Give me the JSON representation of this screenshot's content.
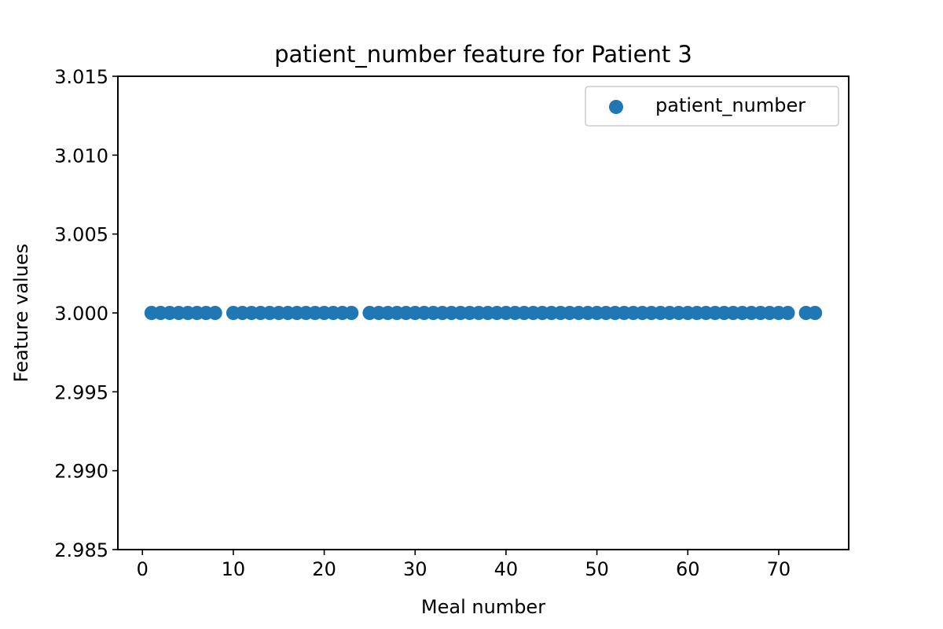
{
  "chart_data": {
    "type": "scatter",
    "title": "patient_number feature for Patient 3",
    "xlabel": "Meal number",
    "ylabel": "Feature values",
    "xlim": [
      -2.7,
      77.7
    ],
    "ylim": [
      2.985,
      3.015
    ],
    "xticks": [
      0,
      10,
      20,
      30,
      40,
      50,
      60,
      70
    ],
    "xtick_labels": [
      "0",
      "10",
      "20",
      "30",
      "40",
      "50",
      "60",
      "70"
    ],
    "yticks": [
      2.985,
      2.99,
      2.995,
      3.0,
      3.005,
      3.01,
      3.015
    ],
    "ytick_labels": [
      "2.985",
      "2.990",
      "2.995",
      "3.000",
      "3.005",
      "3.010",
      "3.015"
    ],
    "grid": false,
    "legend": {
      "placement": "upper-right"
    },
    "series": [
      {
        "name": "patient_number",
        "color": "#1f77b4",
        "x": [
          1,
          2,
          3,
          4,
          5,
          6,
          7,
          8,
          10,
          11,
          12,
          13,
          14,
          15,
          16,
          17,
          18,
          19,
          20,
          21,
          22,
          23,
          25,
          26,
          27,
          28,
          29,
          30,
          31,
          32,
          33,
          34,
          35,
          36,
          37,
          38,
          39,
          40,
          41,
          42,
          43,
          44,
          45,
          46,
          47,
          48,
          49,
          50,
          51,
          52,
          53,
          54,
          55,
          56,
          57,
          58,
          59,
          60,
          61,
          62,
          63,
          64,
          65,
          66,
          67,
          68,
          69,
          70,
          71,
          73,
          74
        ],
        "y": [
          3,
          3,
          3,
          3,
          3,
          3,
          3,
          3,
          3,
          3,
          3,
          3,
          3,
          3,
          3,
          3,
          3,
          3,
          3,
          3,
          3,
          3,
          3,
          3,
          3,
          3,
          3,
          3,
          3,
          3,
          3,
          3,
          3,
          3,
          3,
          3,
          3,
          3,
          3,
          3,
          3,
          3,
          3,
          3,
          3,
          3,
          3,
          3,
          3,
          3,
          3,
          3,
          3,
          3,
          3,
          3,
          3,
          3,
          3,
          3,
          3,
          3,
          3,
          3,
          3,
          3,
          3,
          3,
          3,
          3,
          3
        ]
      }
    ]
  }
}
